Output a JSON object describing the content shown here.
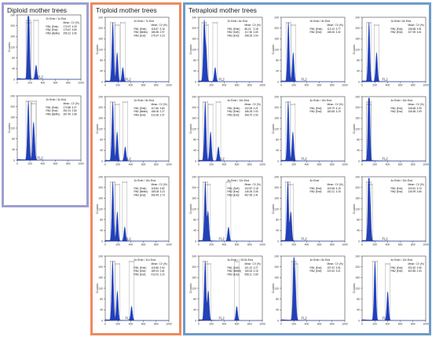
{
  "panels": {
    "diploid": {
      "title": "Diploid mother trees",
      "border_color": "#9e9fd0"
    },
    "triploid": {
      "title": "Triploid mother trees",
      "border_color": "#ee8a5e"
    },
    "tetraploid": {
      "title": "Tetraploid mother trees",
      "border_color": "#6e9bc9"
    }
  },
  "histogram_common": {
    "x_axis_label": "FL2",
    "y_axis_label": "Counts",
    "x_ticks": [
      "0",
      "200",
      "400",
      "600",
      "800",
      "1000"
    ],
    "y_ticks": [
      "0",
      "40",
      "80",
      "120",
      "160",
      "200",
      "240"
    ],
    "col_mean": "Mean",
    "col_cv": "CV (%)",
    "fill_color": "#1f3fbf"
  },
  "histograms": [
    {
      "panel": "diploid",
      "title": "2x Emb / 1x End",
      "rows": [
        [
          "RN1 (Emb)",
          "174.97",
          "4.25"
        ],
        [
          "RN2 (End)",
          "179.67",
          "3.69"
        ],
        [
          "RN3 (BeMo)",
          "296.12",
          "3.06"
        ]
      ]
    },
    {
      "panel": "diploid",
      "title": "2x Emb / 3x End",
      "rows": [
        [
          "RN1 (Emb)",
          "173.86",
          "3.27"
        ],
        [
          "RN2 (End)",
          "251.91",
          "2.80"
        ],
        [
          "RN3 (BeMo)",
          "267.40",
          "2.68"
        ]
      ]
    },
    {
      "panel": "triploid",
      "title": "2x Emb / 7x End",
      "rows": [
        [
          "RN1 (Emb)",
          "118.57",
          "3.16"
        ],
        [
          "RN2 (BeMo)",
          "186.55",
          "2.97"
        ],
        [
          "RN3 (End)",
          "275.97",
          "2.23"
        ]
      ]
    },
    {
      "panel": "triploid",
      "title": "2x Emb / 8x End",
      "rows": [
        [
          "RN1 (Emb)",
          "117.86",
          "3.80"
        ],
        [
          "RN2 (BeMo)",
          "186.06",
          "2.27"
        ],
        [
          "RN3 (End)",
          "313.36",
          "2.37"
        ]
      ]
    },
    {
      "panel": "triploid",
      "title": "2x Emb / 10x End",
      "rows": [
        [
          "RN1 (Emb)",
          "118.84",
          "3.82"
        ],
        [
          "RN2 (BeMo)",
          "189.08",
          "3.23"
        ],
        [
          "RN3 (End)",
          "306.45",
          "2.73"
        ]
      ]
    },
    {
      "panel": "triploid",
      "title": "2x Emb / 11x End",
      "rows": [
        [
          "RN1 (Emb)",
          "115.68",
          "2.94"
        ],
        [
          "RN2 (End)",
          "189.91",
          "2.81"
        ],
        [
          "RN3 (End)",
          "413.91",
          "2.22"
        ]
      ]
    },
    {
      "panel": "tetraploid",
      "title": "2x Emb / 6x End",
      "rows": [
        [
          "RN1 (Emb)",
          "86.16",
          "3.18"
        ],
        [
          "RN2 (SoE)",
          "117.38",
          "2.80"
        ],
        [
          "RN3 (End)",
          "258.35",
          "2.64"
        ]
      ]
    },
    {
      "panel": "tetraploid",
      "title": "3x Emb / 5x End",
      "rows": [
        [
          "RN1 (Emb)",
          "113.13",
          "3.77"
        ],
        [
          "RN2 (End)",
          "188.30",
          "3.32"
        ]
      ]
    },
    {
      "panel": "tetraploid",
      "title": "2x Emb / 6x End",
      "rows": [
        [
          "RN1 (End)",
          "108.68",
          "3.51"
        ],
        [
          "RN2 (End)",
          "227.95",
          "3.61"
        ]
      ]
    },
    {
      "panel": "tetraploid",
      "title": "4x Emb / 10x End",
      "rows": [
        [
          "RN1 (Emb)",
          "102.08",
          "3.21"
        ],
        [
          "RN2 (Emb)",
          "186.28",
          "2.93"
        ],
        [
          "RN3 (End)",
          "308.75",
          "2.53"
        ]
      ]
    },
    {
      "panel": "tetraploid",
      "title": "4x Emb / 10x End",
      "rows": [
        [
          "RN1 (End)",
          "109.79",
          "4.10"
        ],
        [
          "RN2 (End)",
          "183.65",
          "3.19"
        ]
      ]
    },
    {
      "panel": "tetraploid",
      "title": "4x Emb / 10x End",
      "rows": [
        [
          "RN1 (End)",
          "108.68",
          "3.30"
        ],
        [
          "RN2 (End)",
          "106.58",
          "2.99"
        ]
      ]
    },
    {
      "panel": "tetraploid",
      "title": "4x Emb / 12x End",
      "rows": [
        [
          "RN1 (SoE)",
          "102.87",
          "3.18"
        ],
        [
          "RN2 (End)",
          "146.35",
          "3.06"
        ],
        [
          "RN3 (End)",
          "467.65",
          "2.41"
        ]
      ]
    },
    {
      "panel": "tetraploid",
      "title": "4x Emb",
      "rows": [
        [
          "RN1 (End)",
          "103.48",
          "3.15"
        ],
        [
          "RN2 (End)",
          "152.11",
          "3.15"
        ]
      ]
    },
    {
      "panel": "tetraploid",
      "title": "4x Emb / 10x End",
      "rows": [
        [
          "RN1 (End)",
          "103.51",
          "3.13"
        ],
        [
          "RN2 (End)",
          "126.99",
          "3.66"
        ]
      ]
    },
    {
      "panel": "tetraploid",
      "title": "4x Emb / ~15.5x End",
      "rows": [
        [
          "RN1 (SoE)",
          "101.22",
          "3.27"
        ],
        [
          "RN2 (BeMo)",
          "150.63",
          "3.15"
        ],
        [
          "RN3 (End)",
          "598.11",
          "2.69"
        ]
      ]
    },
    {
      "panel": "tetraploid",
      "title": "4x Emb / 5x End",
      "rows": [
        [
          "RN1 (End)",
          "197.67",
          "3.51"
        ],
        [
          "RN2 (End)",
          "222.42",
          "3.21"
        ]
      ]
    },
    {
      "panel": "tetraploid",
      "title": "4x Emb / 12x End",
      "rows": [
        [
          "RN1 (End)",
          "202.62",
          "2.96"
        ],
        [
          "RN2 (End)",
          "402.85",
          "2.43"
        ]
      ]
    }
  ]
}
